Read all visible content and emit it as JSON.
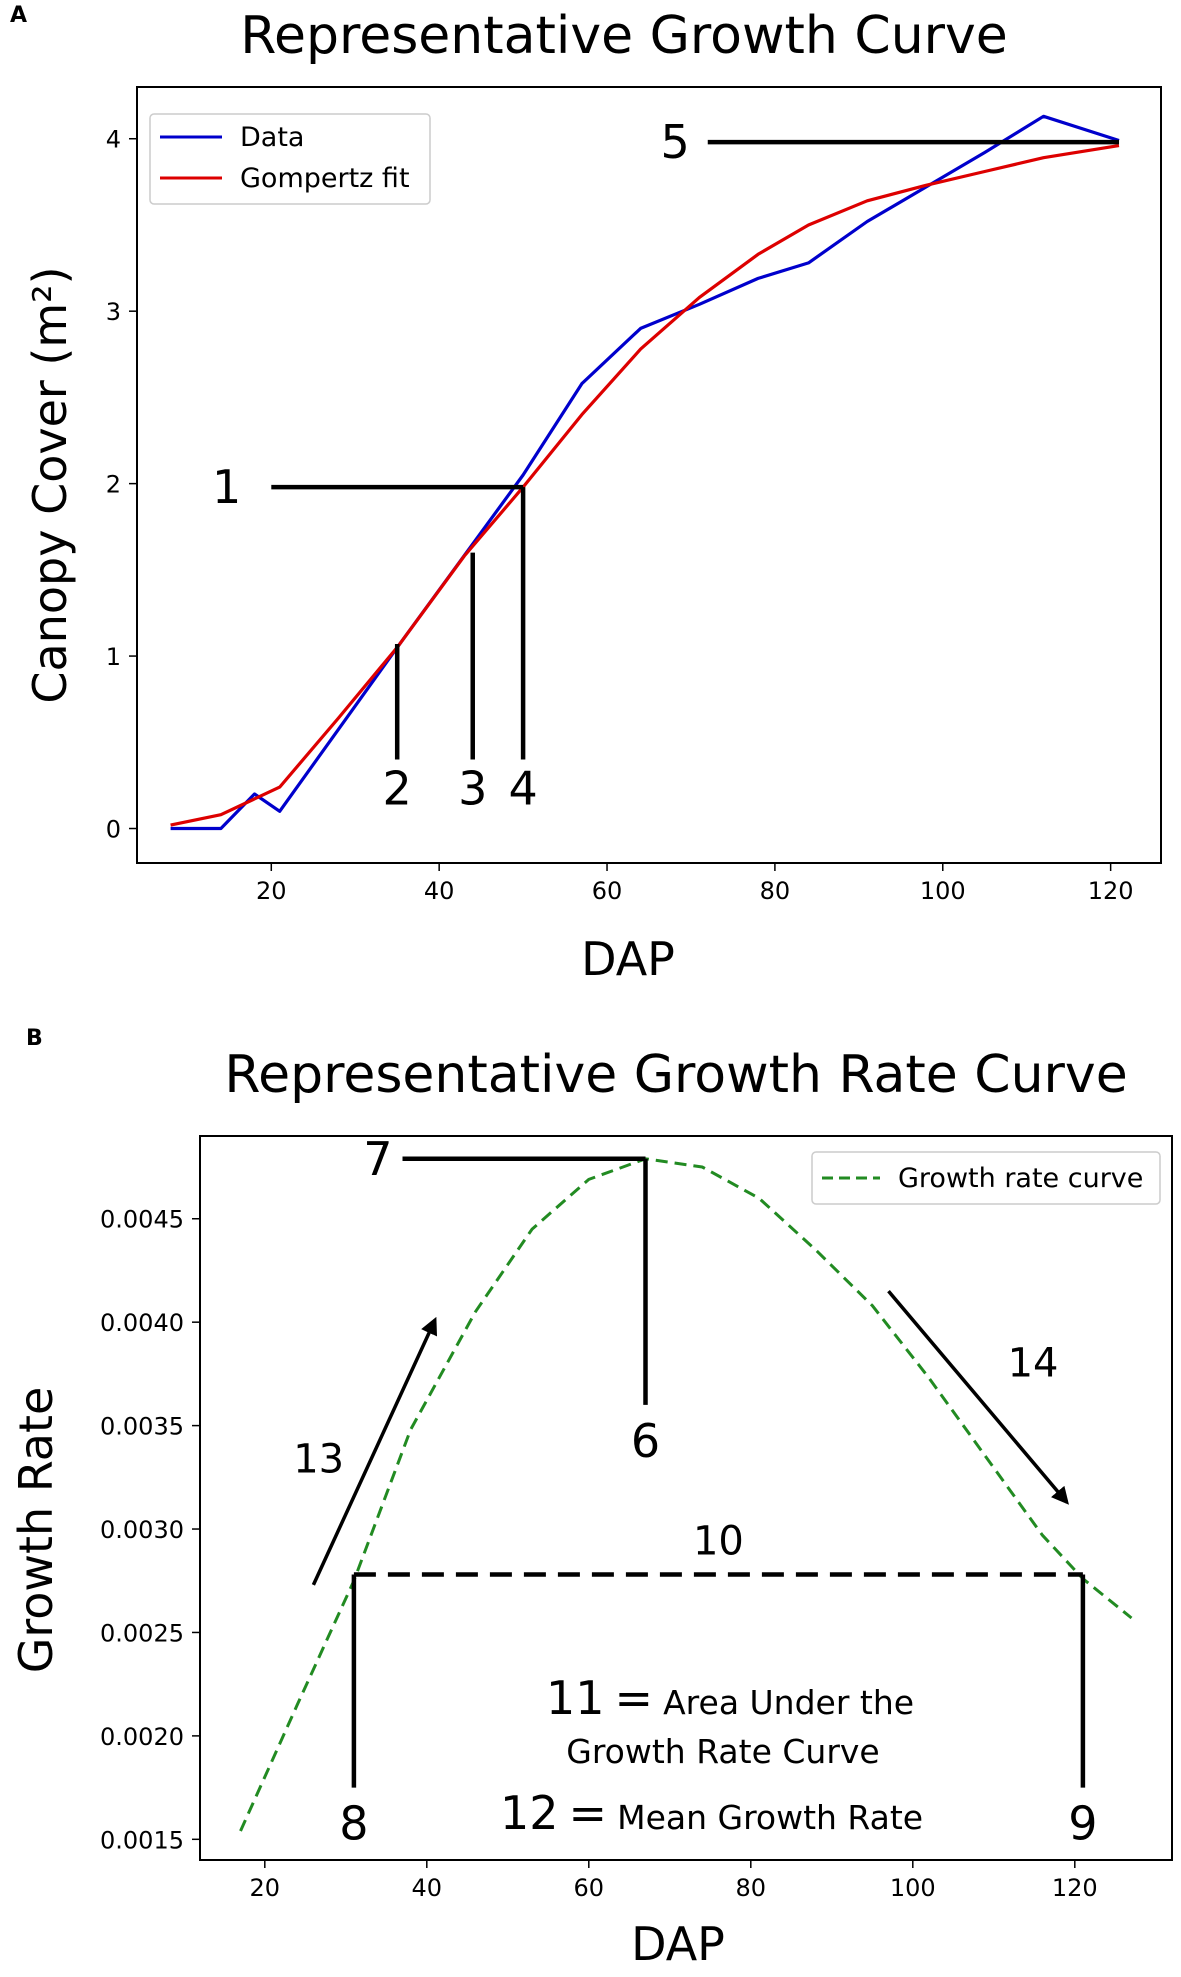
{
  "chart_data": [
    {
      "panel": "A",
      "type": "line",
      "title": "Representative Growth Curve",
      "xlabel": "DAP",
      "ylabel": "Canopy Cover (m²)",
      "xlim": [
        4,
        126
      ],
      "ylim": [
        -0.2,
        4.3
      ],
      "xticks": [
        20,
        40,
        60,
        80,
        100,
        120
      ],
      "yticks": [
        0,
        1,
        2,
        3,
        4
      ],
      "legend_position": "top-left",
      "series": [
        {
          "name": "Data",
          "color": "#0000cc",
          "x": [
            8,
            14,
            18,
            21,
            35,
            50,
            57,
            64,
            71,
            78,
            84,
            91,
            98,
            105,
            112,
            121
          ],
          "y": [
            0,
            0,
            0.2,
            0.1,
            1.05,
            2.05,
            2.58,
            2.9,
            3.04,
            3.19,
            3.28,
            3.52,
            3.72,
            3.92,
            4.13,
            3.99
          ]
        },
        {
          "name": "Gompertz fit",
          "color": "#dd0000",
          "x": [
            8,
            14,
            21,
            28,
            35,
            43,
            50,
            57,
            64,
            71,
            78,
            84,
            91,
            98,
            105,
            112,
            121
          ],
          "y": [
            0.02,
            0.08,
            0.24,
            0.64,
            1.05,
            1.58,
            1.98,
            2.4,
            2.78,
            3.08,
            3.33,
            3.5,
            3.64,
            3.73,
            3.81,
            3.89,
            3.96
          ]
        }
      ],
      "annotations": [
        {
          "label": "1",
          "line": [
            [
              20,
              1.98
            ],
            [
              50,
              1.98
            ]
          ]
        },
        {
          "label": "2",
          "line": [
            [
              35,
              1.07
            ],
            [
              35,
              0.4
            ]
          ]
        },
        {
          "label": "3",
          "line": [
            [
              44,
              1.6
            ],
            [
              44,
              0.4
            ]
          ]
        },
        {
          "label": "4",
          "line": [
            [
              50,
              1.98
            ],
            [
              50,
              0.4
            ]
          ]
        },
        {
          "label": "5",
          "line": [
            [
              72,
              3.98
            ],
            [
              121,
              3.98
            ]
          ]
        }
      ]
    },
    {
      "panel": "B",
      "type": "line",
      "title": "Representative Growth Rate Curve",
      "xlabel": "DAP",
      "ylabel": "Growth Rate",
      "xlim": [
        12,
        132
      ],
      "ylim": [
        0.0014,
        0.0049
      ],
      "xticks": [
        20,
        40,
        60,
        80,
        100,
        120
      ],
      "yticks": [
        "0.0015",
        "0.0020",
        "0.0025",
        "0.0030",
        "0.0035",
        "0.0040",
        "0.0045"
      ],
      "legend_position": "top-right",
      "series": [
        {
          "name": "Growth rate curve",
          "color": "#228b22",
          "style": "dashed",
          "x": [
            17,
            24,
            31,
            38,
            46,
            53,
            60,
            67,
            74,
            81,
            88,
            95,
            102,
            109,
            116,
            121,
            127
          ],
          "y": [
            0.00154,
            0.00215,
            0.00275,
            0.00348,
            0.00405,
            0.00445,
            0.00469,
            0.00479,
            0.00475,
            0.0046,
            0.00435,
            0.00408,
            0.00373,
            0.00335,
            0.00297,
            0.00276,
            0.00257
          ]
        }
      ],
      "annotations": [
        {
          "label": "6",
          "line": [
            [
              67,
              0.00479
            ],
            [
              67,
              0.0036
            ]
          ]
        },
        {
          "label": "7",
          "line": [
            [
              37,
              0.00479
            ],
            [
              67,
              0.00479
            ]
          ]
        },
        {
          "label": "8",
          "line": [
            [
              31,
              0.00278
            ],
            [
              31,
              0.00175
            ]
          ]
        },
        {
          "label": "9",
          "line": [
            [
              121,
              0.00278
            ],
            [
              121,
              0.00175
            ]
          ]
        },
        {
          "label": "10",
          "line": [
            [
              31,
              0.00278
            ],
            [
              121,
              0.00278
            ]
          ],
          "style": "dashed"
        },
        {
          "label": "13",
          "arrow": [
            [
              26,
              0.00273
            ],
            [
              41,
              0.00401
            ]
          ]
        },
        {
          "label": "14",
          "arrow": [
            [
              97,
              0.00415
            ],
            [
              119,
              0.00313
            ]
          ]
        }
      ],
      "text_annotations": [
        {
          "number": "11",
          "equals": "=",
          "text_line1": "Area Under the",
          "text_line2": "Growth Rate Curve"
        },
        {
          "number": "12",
          "equals": "=",
          "text": "Mean Growth Rate"
        }
      ]
    }
  ]
}
